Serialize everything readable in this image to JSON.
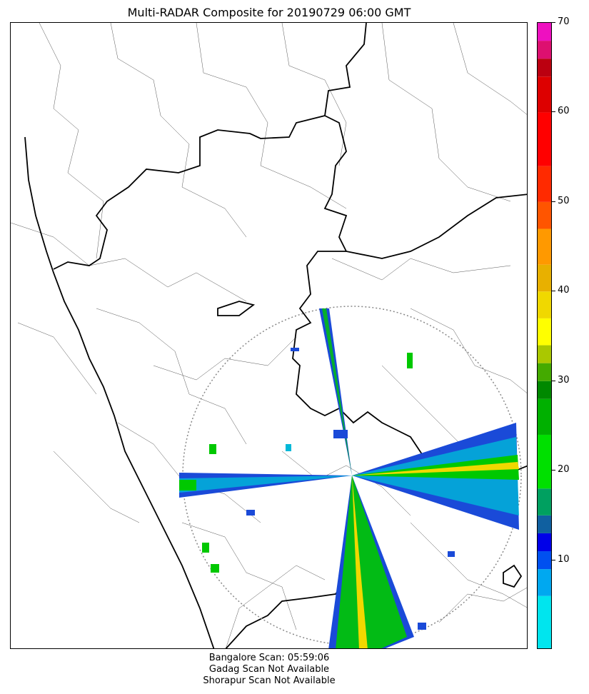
{
  "title": "Multi-RADAR Composite for 20190729 06:00 GMT",
  "colorbar": {
    "min": 0,
    "max": 70,
    "ticks": [
      "10",
      "20",
      "30",
      "40",
      "50",
      "60",
      "70"
    ],
    "stops": [
      {
        "v": 0,
        "c": "#00e5ee"
      },
      {
        "v": 6,
        "c": "#00a8f0"
      },
      {
        "v": 9,
        "c": "#0050f0"
      },
      {
        "v": 11,
        "c": "#0000e8"
      },
      {
        "v": 13,
        "c": "#1060a0"
      },
      {
        "v": 15,
        "c": "#00a060"
      },
      {
        "v": 18,
        "c": "#00e000"
      },
      {
        "v": 24,
        "c": "#00b000"
      },
      {
        "v": 28,
        "c": "#008800"
      },
      {
        "v": 30,
        "c": "#44aa00"
      },
      {
        "v": 32,
        "c": "#aac800"
      },
      {
        "v": 34,
        "c": "#ffff00"
      },
      {
        "v": 37,
        "c": "#f0d800"
      },
      {
        "v": 40,
        "c": "#e8b000"
      },
      {
        "v": 43,
        "c": "#ff9900"
      },
      {
        "v": 47,
        "c": "#ff5500"
      },
      {
        "v": 50,
        "c": "#ff2a00"
      },
      {
        "v": 54,
        "c": "#ff0000"
      },
      {
        "v": 60,
        "c": "#dd0000"
      },
      {
        "v": 64,
        "c": "#bb0010"
      },
      {
        "v": 66,
        "c": "#dd1070"
      },
      {
        "v": 68,
        "c": "#ee10c0"
      },
      {
        "v": 70,
        "c": "#ff00ff"
      }
    ]
  },
  "radar": {
    "station": "Bangalore",
    "sectors": [
      {
        "name": "north-beam",
        "color": "#1a4ad8"
      },
      {
        "name": "east-beam",
        "color": "#1a4ad8"
      },
      {
        "name": "south-beam",
        "color": "#00b800"
      },
      {
        "name": "west-beam",
        "color": "#1a4ad8"
      }
    ]
  },
  "footer": {
    "line1": "Bangalore Scan: 05:59:06",
    "line2": "Gadag Scan Not Available",
    "line3": "Shorapur Scan Not Available"
  }
}
